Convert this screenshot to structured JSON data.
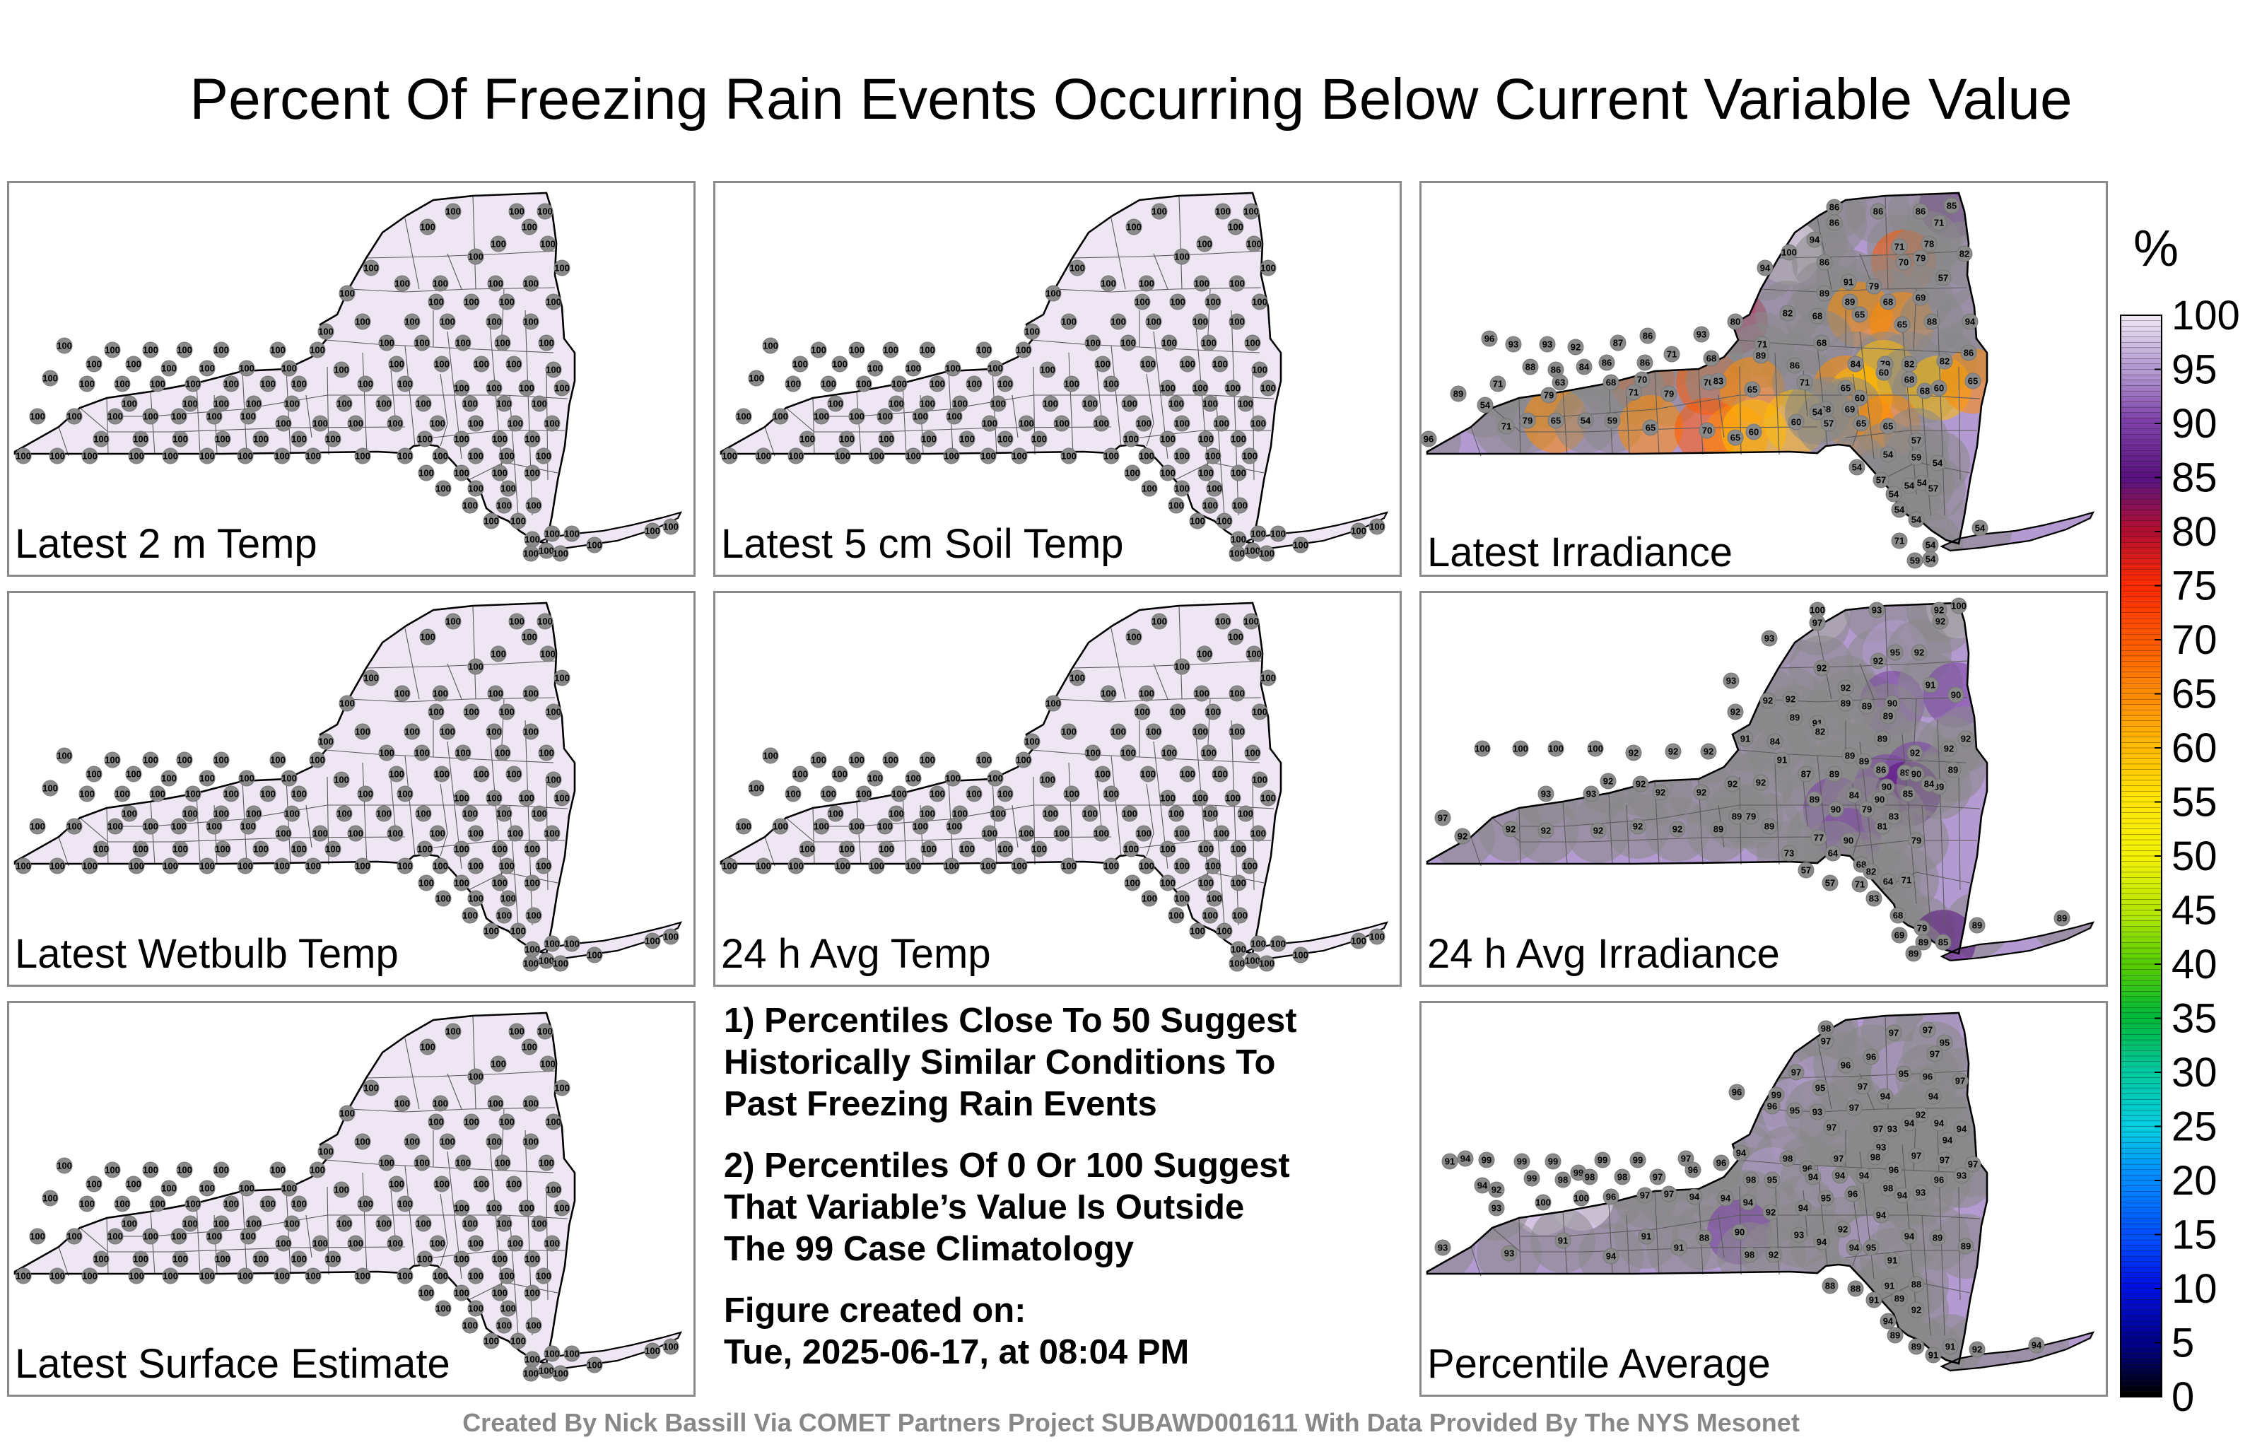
{
  "title": "Percent Of Freezing Rain Events Occurring Below Current Variable Value",
  "panels": [
    {
      "id": "p1",
      "label": "Latest 2 m Temp",
      "value": 100
    },
    {
      "id": "p2",
      "label": "Latest 5 cm Soil Temp",
      "value": 100
    },
    {
      "id": "p3",
      "label": "Latest Irradiance",
      "value": null
    },
    {
      "id": "p4",
      "label": "Latest Wetbulb Temp",
      "value": 100
    },
    {
      "id": "p5",
      "label": "24 h Avg Temp",
      "value": 100
    },
    {
      "id": "p6",
      "label": "24 h Avg Irradiance",
      "value": null
    },
    {
      "id": "p7",
      "label": "Latest Surface Estimate",
      "value": 100
    },
    {
      "id": "p8",
      "label": "Percentile Average",
      "value": null
    }
  ],
  "notes": {
    "note1": [
      "1) Percentiles Close To 50 Suggest",
      "Historically Similar Conditions To",
      "Past Freezing Rain Events"
    ],
    "note2": [
      "2) Percentiles Of 0 Or 100 Suggest",
      "That Variable’s Value Is Outside",
      "The 99 Case Climatology"
    ],
    "note3": [
      "Figure created on:",
      "Tue, 2025-06-17, at 08:04 PM"
    ]
  },
  "colorbar": {
    "unit": "%",
    "ticks": [
      "100",
      "95",
      "90",
      "85",
      "80",
      "75",
      "70",
      "65",
      "60",
      "55",
      "50",
      "45",
      "40",
      "35",
      "30",
      "25",
      "20",
      "15",
      "10",
      "5",
      "0"
    ],
    "colors": {
      "100": "#efe6f3",
      "95": "#b39ad0",
      "90": "#7c3fa8",
      "85": "#5a1380",
      "80": "#b40f30",
      "75": "#ff2a00",
      "70": "#ff5800",
      "65": "#ff8a00",
      "60": "#ffbb00",
      "55": "#ffe600",
      "50": "#f2f200",
      "45": "#b8e800",
      "40": "#56cc00",
      "35": "#00b83a",
      "30": "#00c8a0",
      "25": "#00cde0",
      "20": "#0088ff",
      "15": "#0050ff",
      "10": "#0010e0",
      "5": "#000088",
      "0": "#000000"
    }
  },
  "stations_lbl": {
    "p3": [
      "86",
      "86",
      "86",
      "86",
      "85",
      "71",
      "94",
      "100",
      "86",
      "71",
      "78",
      "82",
      "94",
      "91",
      "70",
      "79",
      "57",
      "89",
      "89",
      "79",
      "68",
      "69",
      "65",
      "96",
      "93",
      "93",
      "92",
      "87",
      "86",
      "93",
      "80",
      "82",
      "68",
      "65",
      "88",
      "94",
      "88",
      "86",
      "84",
      "86",
      "86",
      "71",
      "68",
      "71",
      "68",
      "89",
      "86",
      "84",
      "79",
      "82",
      "82",
      "86",
      "63",
      "68",
      "70",
      "79",
      "70",
      "89",
      "71",
      "83",
      "65",
      "71",
      "65",
      "60",
      "68",
      "68",
      "60",
      "65",
      "60",
      "68",
      "79",
      "79",
      "71",
      "71",
      "54",
      "65",
      "96",
      "65",
      "54",
      "59",
      "65",
      "70",
      "65",
      "60",
      "60",
      "57",
      "54",
      "69",
      "65",
      "57",
      "54",
      "59",
      "54",
      "54",
      "57",
      "54",
      "54",
      "54",
      "57",
      "54",
      "54",
      "54",
      "71",
      "54",
      "54",
      "59",
      "54"
    ],
    "p6": [
      "100",
      "97",
      "93",
      "92",
      "100",
      "92",
      "93",
      "93",
      "92",
      "92",
      "95",
      "92",
      "92",
      "92",
      "89",
      "90",
      "91",
      "90",
      "92",
      "92",
      "89",
      "89",
      "89",
      "91",
      "100",
      "100",
      "100",
      "100",
      "92",
      "92",
      "92",
      "91",
      "84",
      "82",
      "89",
      "89",
      "92",
      "92",
      "92",
      "91",
      "89",
      "87",
      "89",
      "86",
      "89",
      "90",
      "90",
      "90",
      "89",
      "89",
      "92",
      "92",
      "93",
      "93",
      "92",
      "92",
      "92",
      "92",
      "79",
      "89",
      "90",
      "84",
      "85",
      "84",
      "97",
      "92",
      "92",
      "92",
      "92",
      "92",
      "92",
      "89",
      "89",
      "89",
      "79",
      "81",
      "77",
      "90",
      "83",
      "79",
      "73",
      "57",
      "64",
      "68",
      "57",
      "71",
      "82",
      "64",
      "71",
      "83",
      "68",
      "79",
      "89",
      "89",
      "69",
      "89",
      "85",
      "89"
    ],
    "p8": [
      "98",
      "97",
      "97",
      "97",
      "95",
      "99",
      "97",
      "95",
      "96",
      "97",
      "96",
      "94",
      "95",
      "96",
      "97",
      "97",
      "94",
      "92",
      "96",
      "96",
      "95",
      "93",
      "97",
      "97",
      "97",
      "93",
      "94",
      "94",
      "94",
      "94",
      "93",
      "99",
      "99",
      "99",
      "99",
      "99",
      "99",
      "97",
      "94",
      "98",
      "96",
      "97",
      "98",
      "97",
      "97",
      "97",
      "92",
      "99",
      "98",
      "98",
      "98",
      "97",
      "96",
      "96",
      "98",
      "95",
      "94",
      "94",
      "94",
      "96",
      "96",
      "93",
      "93",
      "94",
      "98",
      "94",
      "96",
      "95",
      "94",
      "92",
      "94",
      "94",
      "94",
      "97",
      "97",
      "96",
      "100",
      "100",
      "93",
      "94",
      "94",
      "91",
      "93",
      "93",
      "91",
      "94",
      "91",
      "91",
      "88",
      "90",
      "98",
      "92",
      "93",
      "94",
      "92",
      "94",
      "95",
      "91",
      "94",
      "89",
      "89",
      "88",
      "88",
      "91",
      "88",
      "91",
      "89",
      "92",
      "94",
      "89",
      "89",
      "91",
      "91",
      "92",
      "94"
    ]
  }
}
